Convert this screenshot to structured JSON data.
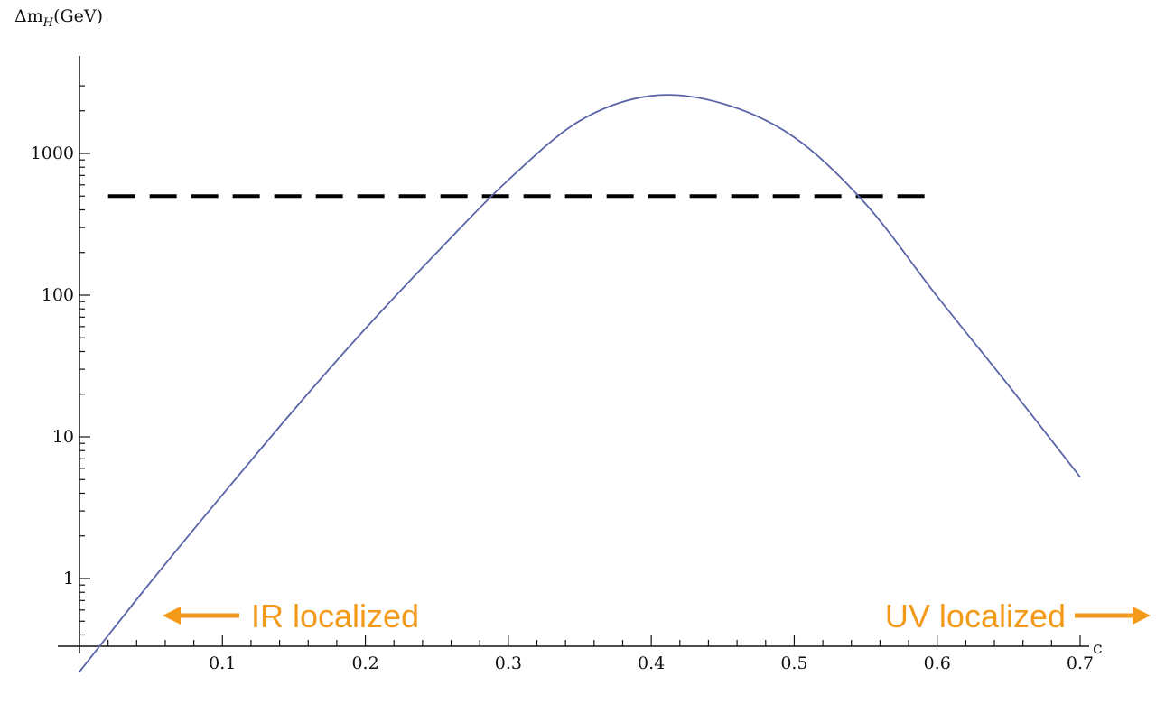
{
  "chart_data": {
    "type": "line",
    "xlabel": "c",
    "ylabel": "Δm",
    "ylabel_sub": "H",
    "ylabel_unit": "(GeV)",
    "xlim": [
      0,
      0.7
    ],
    "ylim": [
      0.2,
      3000
    ],
    "yscale": "log",
    "grid": false,
    "x_ticks": [
      "0.1",
      "0.2",
      "0.3",
      "0.4",
      "0.5",
      "0.6",
      "0.7"
    ],
    "y_ticks": [
      "1",
      "10",
      "100",
      "1000"
    ],
    "series": [
      {
        "color": "#5a64a8",
        "x": [
          0.0,
          0.05,
          0.1,
          0.15,
          0.2,
          0.25,
          0.3,
          0.35,
          0.4,
          0.45,
          0.5,
          0.55,
          0.6,
          0.65,
          0.7
        ],
        "y": [
          0.22,
          0.95,
          3.9,
          15.5,
          58,
          200,
          650,
          1700,
          2550,
          2250,
          1300,
          440,
          98,
          23,
          5.2
        ]
      }
    ],
    "reference_line": {
      "y": 500,
      "x_start": 0.02,
      "x_end": 0.6,
      "style": "dashed",
      "color": "#000000"
    },
    "annotations": [
      {
        "text": "IR localized",
        "arrow": "left",
        "color": "#f39a1a"
      },
      {
        "text": "UV localized",
        "arrow": "right",
        "color": "#f39a1a"
      }
    ]
  }
}
